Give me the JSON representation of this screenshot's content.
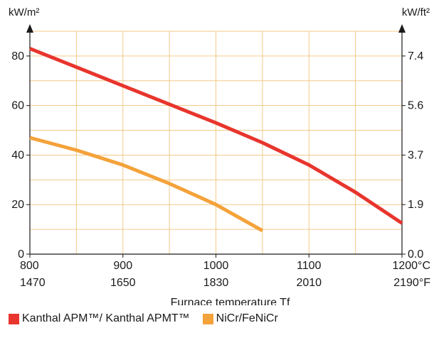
{
  "chart_data": {
    "type": "line",
    "xlabel": "Furnace temperature Tf",
    "x_primary": {
      "unit": "°C",
      "ticks": [
        800,
        900,
        1000,
        1100,
        1200
      ],
      "tick_labels": [
        "800",
        "900",
        "1000",
        "1100",
        "1200°C"
      ],
      "range": [
        800,
        1200
      ]
    },
    "x_secondary": {
      "unit": "°F",
      "tick_labels": [
        "1470",
        "1650",
        "1830",
        "2010",
        "2190°F"
      ]
    },
    "y_left": {
      "unit_label": "kW/m²",
      "ticks": [
        0,
        20,
        40,
        60,
        80
      ],
      "range": [
        0,
        90
      ]
    },
    "y_right": {
      "unit_label": "kW/ft²",
      "tick_labels": [
        "0.0",
        "1.9",
        "3.7",
        "5.6",
        "7.4"
      ]
    },
    "grid": true,
    "legend_position": "bottom",
    "series": [
      {
        "name": "Kanthal APM™/ Kanthal APMT™",
        "color": "#e8352d",
        "points": [
          [
            800,
            83
          ],
          [
            900,
            68
          ],
          [
            1000,
            53
          ],
          [
            1050,
            45
          ],
          [
            1100,
            36
          ],
          [
            1150,
            25
          ],
          [
            1200,
            12.5
          ]
        ]
      },
      {
        "name": "NiCr/FeNiCr",
        "color": "#f4a23a",
        "points": [
          [
            800,
            47
          ],
          [
            850,
            42
          ],
          [
            900,
            36
          ],
          [
            950,
            28.5
          ],
          [
            1000,
            20
          ],
          [
            1050,
            9.5
          ]
        ]
      }
    ]
  }
}
